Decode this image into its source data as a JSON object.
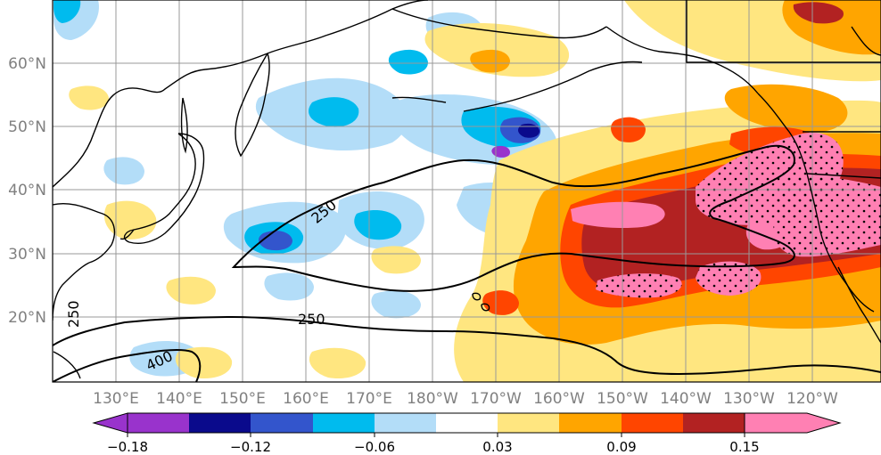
{
  "map": {
    "lon_labels": [
      "130°E",
      "140°E",
      "150°E",
      "160°E",
      "170°E",
      "180°W",
      "170°W",
      "160°W",
      "150°W",
      "140°W",
      "130°W",
      "120°W"
    ],
    "lat_labels": [
      "60°N",
      "50°N",
      "40°N",
      "30°N",
      "20°N"
    ],
    "contour_labels": [
      "250",
      "250",
      "400",
      "250"
    ],
    "colors": {
      "land_outline": "#000000",
      "grid": "#999999",
      "contour": "#000000"
    }
  },
  "colorbar": {
    "colors": [
      "#9933cc",
      "#0a0a8c",
      "#3355cc",
      "#00bbee",
      "#b3ddf8",
      "#ffffff",
      "#ffe680",
      "#ffa500",
      "#ff4500",
      "#b22222",
      "#ff80b3"
    ],
    "tick_labels": [
      "−0.18",
      "−0.12",
      "−0.06",
      "0.03",
      "0.09",
      "0.15"
    ]
  }
}
